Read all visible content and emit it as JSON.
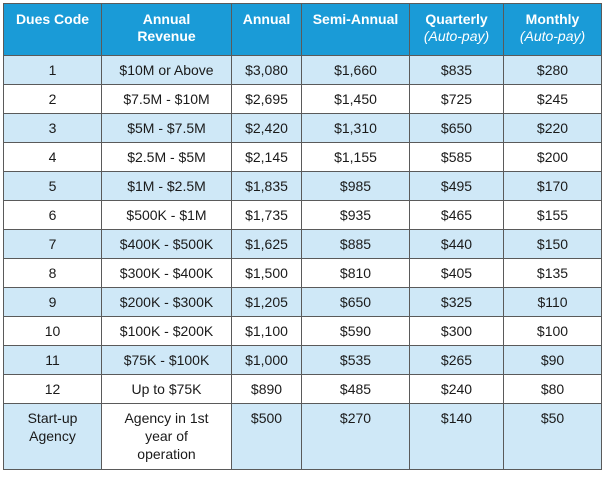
{
  "headers": {
    "code": "Dues Code",
    "revenue_line1": "Annual",
    "revenue_line2": "Revenue",
    "annual": "Annual",
    "semi": "Semi-Annual",
    "quarterly": "Quarterly",
    "quarterly_sub": "(Auto-pay)",
    "monthly": "Monthly",
    "monthly_sub": "(Auto-pay)"
  },
  "rows": [
    {
      "code": "1",
      "revenue": "$10M or Above",
      "annual": "$3,080",
      "semi": "$1,660",
      "quarterly": "$835",
      "monthly": "$280"
    },
    {
      "code": "2",
      "revenue": "$7.5M - $10M",
      "annual": "$2,695",
      "semi": "$1,450",
      "quarterly": "$725",
      "monthly": "$245"
    },
    {
      "code": "3",
      "revenue": "$5M - $7.5M",
      "annual": "$2,420",
      "semi": "$1,310",
      "quarterly": "$650",
      "monthly": "$220"
    },
    {
      "code": "4",
      "revenue": "$2.5M - $5M",
      "annual": "$2,145",
      "semi": "$1,155",
      "quarterly": "$585",
      "monthly": "$200"
    },
    {
      "code": "5",
      "revenue": "$1M - $2.5M",
      "annual": "$1,835",
      "semi": "$985",
      "quarterly": "$495",
      "monthly": "$170"
    },
    {
      "code": "6",
      "revenue": "$500K - $1M",
      "annual": "$1,735",
      "semi": "$935",
      "quarterly": "$465",
      "monthly": "$155"
    },
    {
      "code": "7",
      "revenue": "$400K - $500K",
      "annual": "$1,625",
      "semi": "$885",
      "quarterly": "$440",
      "monthly": "$150"
    },
    {
      "code": "8",
      "revenue": "$300K - $400K",
      "annual": "$1,500",
      "semi": "$810",
      "quarterly": "$405",
      "monthly": "$135"
    },
    {
      "code": "9",
      "revenue": "$200K - $300K",
      "annual": "$1,205",
      "semi": "$650",
      "quarterly": "$325",
      "monthly": "$110"
    },
    {
      "code": "10",
      "revenue": "$100K - $200K",
      "annual": "$1,100",
      "semi": "$590",
      "quarterly": "$300",
      "monthly": "$100"
    },
    {
      "code": "11",
      "revenue": "$75K - $100K",
      "annual": "$1,000",
      "semi": "$535",
      "quarterly": "$265",
      "monthly": "$90"
    },
    {
      "code": "12",
      "revenue": "Up to $75K",
      "annual": "$890",
      "semi": "$485",
      "quarterly": "$240",
      "monthly": "$80"
    }
  ],
  "startup": {
    "code_line1": "Start-up",
    "code_line2": "Agency",
    "revenue_line1": "Agency in 1st",
    "revenue_line2": "year of",
    "revenue_line3": "operation",
    "annual": "$500",
    "semi": "$270",
    "quarterly": "$140",
    "monthly": "$50"
  },
  "colors": {
    "header_bg": "#1a9bd7",
    "header_text": "#ffffff",
    "alt_row_bg": "#cfe8f7",
    "border": "#5a5a5a"
  }
}
